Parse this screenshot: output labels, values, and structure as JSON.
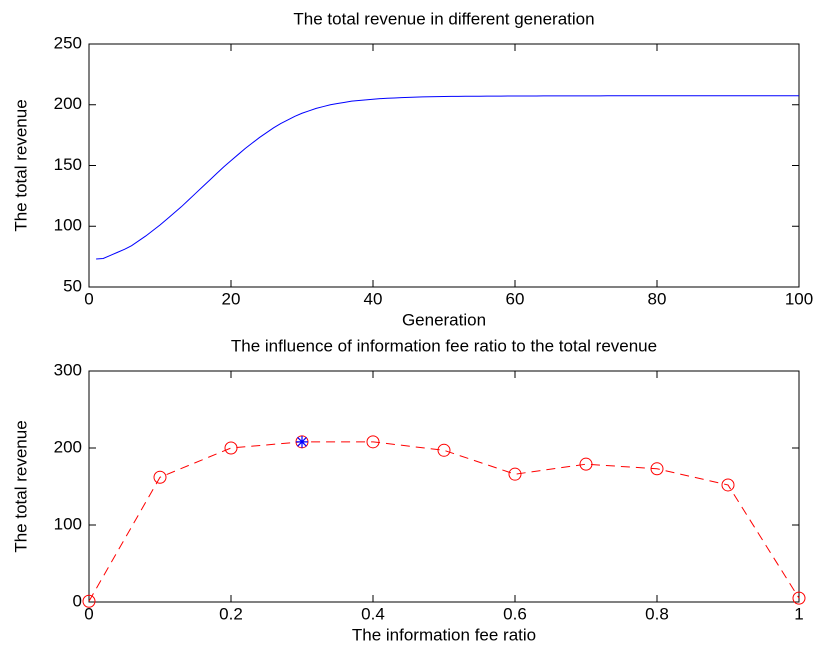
{
  "chart_data": [
    {
      "type": "line",
      "title": "The total revenue in different generation",
      "xlabel": "Generation",
      "ylabel": "The total revenue",
      "x": [
        1,
        2,
        3,
        4,
        5,
        6,
        7,
        8,
        9,
        10,
        11,
        12,
        13,
        14,
        15,
        16,
        17,
        18,
        19,
        20,
        21,
        22,
        23,
        24,
        25,
        26,
        27,
        28,
        29,
        30,
        31,
        32,
        33,
        34,
        35,
        36,
        37,
        38,
        39,
        40,
        41,
        42,
        43,
        44,
        45,
        46,
        47,
        48,
        49,
        50,
        51,
        52,
        53,
        54,
        55,
        56,
        57,
        58,
        59,
        60,
        61,
        62,
        63,
        64,
        65,
        66,
        67,
        68,
        69,
        70,
        71,
        72,
        73,
        74,
        75,
        76,
        77,
        78,
        79,
        80,
        81,
        82,
        83,
        84,
        85,
        86,
        87,
        88,
        89,
        90,
        91,
        92,
        93,
        94,
        95,
        96,
        97,
        98,
        99,
        100
      ],
      "series": [
        {
          "color": "#0000ff",
          "linestyle": "-",
          "values": [
            73,
            73.5,
            76,
            78.5,
            81,
            84,
            88,
            92,
            96.5,
            101,
            106,
            111,
            116,
            121.5,
            127,
            132.5,
            138,
            143.5,
            149,
            154,
            159,
            164,
            168.5,
            173,
            177,
            181,
            184.5,
            187.5,
            190.5,
            193,
            195,
            197,
            198.5,
            200,
            201,
            202,
            203,
            203.5,
            204,
            204.5,
            205,
            205.3,
            205.6,
            205.9,
            206.1,
            206.3,
            206.5,
            206.6,
            206.7,
            206.8,
            206.9,
            206.9,
            207,
            207,
            207,
            207.1,
            207.1,
            207.1,
            207.2,
            207.2,
            207.2,
            207.2,
            207.2,
            207.3,
            207.3,
            207.3,
            207.3,
            207.3,
            207.3,
            207.3,
            207.3,
            207.3,
            207.4,
            207.4,
            207.4,
            207.4,
            207.4,
            207.4,
            207.4,
            207.4,
            207.4,
            207.4,
            207.4,
            207.4,
            207.4,
            207.4,
            207.4,
            207.4,
            207.4,
            207.4,
            207.4,
            207.4,
            207.4,
            207.4,
            207.4,
            207.4,
            207.4,
            207.4,
            207.4,
            207.4
          ]
        }
      ],
      "xlim": [
        0,
        100
      ],
      "xticks": [
        0,
        20,
        40,
        60,
        80,
        100
      ],
      "ylim": [
        50,
        250
      ],
      "yticks": [
        50,
        100,
        150,
        200,
        250
      ]
    },
    {
      "type": "line",
      "title": "The influence of information fee ratio to the total revenue",
      "xlabel": "The information fee ratio",
      "ylabel": "The total revenue",
      "x": [
        0,
        0.1,
        0.2,
        0.3,
        0.4,
        0.5,
        0.6,
        0.7,
        0.8,
        0.9,
        1
      ],
      "series": [
        {
          "color": "#ff0000",
          "linestyle": "--",
          "marker": "o",
          "values": [
            1,
            162,
            200,
            208,
            208,
            197,
            166,
            179,
            173,
            152,
            5
          ]
        },
        {
          "color": "#0000ff",
          "linestyle": "none",
          "marker": "*",
          "x": [
            0.3
          ],
          "values": [
            208
          ]
        }
      ],
      "xlim": [
        0,
        1
      ],
      "xticks": [
        0,
        0.2,
        0.4,
        0.6,
        0.8,
        1
      ],
      "ylim": [
        0,
        300
      ],
      "yticks": [
        0,
        100,
        200,
        300
      ]
    }
  ]
}
